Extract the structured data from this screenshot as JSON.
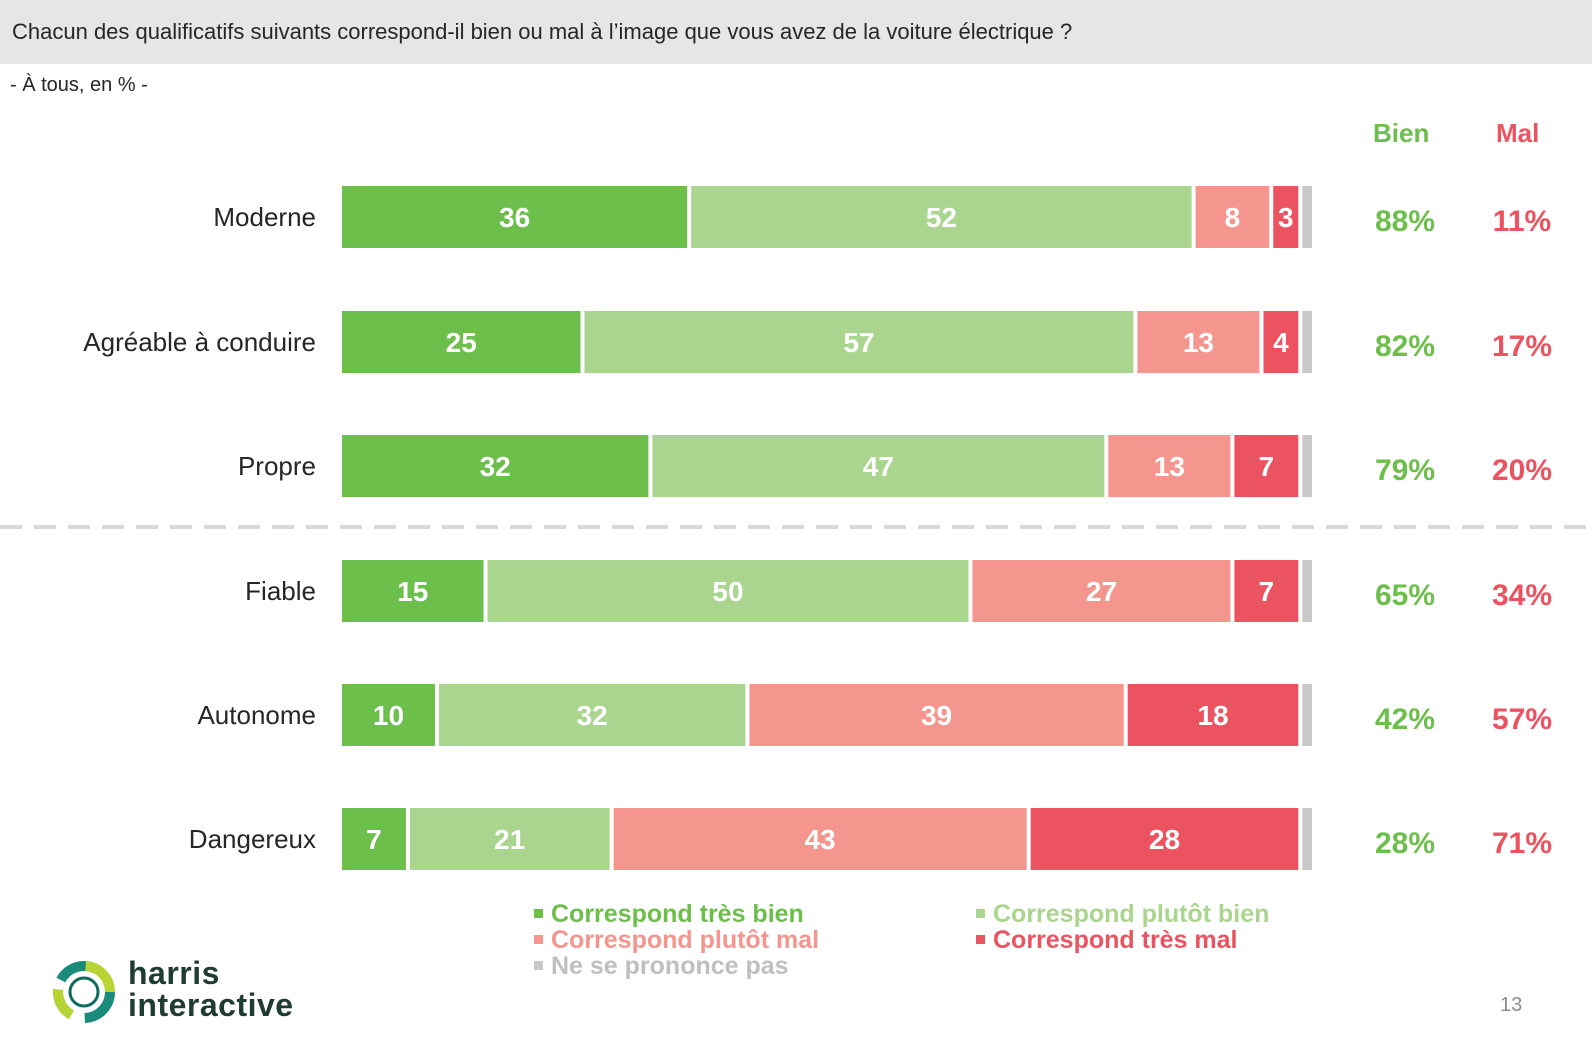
{
  "header": {
    "title": "Chacun des qualificatifs suivants correspond-il bien ou mal à l’image que vous avez de la voiture électrique ?",
    "subtitle": "- À tous, en % -"
  },
  "columns": {
    "bien": "Bien",
    "mal": "Mal"
  },
  "colors": {
    "tres_bien": "#6cbf4a",
    "plutot_bien": "#a9d58e",
    "plutot_mal": "#f4968e",
    "tres_mal": "#ec5360",
    "nspp": "#c8c8c8",
    "bien_text": "#6cbf4a",
    "mal_text": "#ec5360"
  },
  "chart_data": {
    "type": "bar",
    "orientation": "horizontal",
    "stacked": true,
    "categories": [
      "Moderne",
      "Agréable à conduire",
      "Propre",
      "Fiable",
      "Autonome",
      "Dangereux"
    ],
    "series": [
      {
        "name": "Correspond très bien",
        "values": [
          36,
          25,
          32,
          15,
          10,
          7
        ]
      },
      {
        "name": "Correspond plutôt bien",
        "values": [
          52,
          57,
          47,
          50,
          32,
          21
        ]
      },
      {
        "name": "Correspond plutôt mal",
        "values": [
          8,
          13,
          13,
          27,
          39,
          43
        ]
      },
      {
        "name": "Correspond très mal",
        "values": [
          3,
          4,
          7,
          7,
          18,
          28
        ]
      },
      {
        "name": "Ne se prononce pas",
        "values": [
          1,
          1,
          1,
          1,
          1,
          1
        ]
      }
    ],
    "totals_bien": [
      "88%",
      "82%",
      "79%",
      "65%",
      "42%",
      "28%"
    ],
    "totals_mal": [
      "11%",
      "17%",
      "20%",
      "34%",
      "57%",
      "71%"
    ],
    "xlim": [
      0,
      100
    ],
    "grid": false,
    "legend": "bottom"
  },
  "footer": {
    "logo_line1": "harris",
    "logo_line2": "interactive",
    "page_number": "13"
  }
}
